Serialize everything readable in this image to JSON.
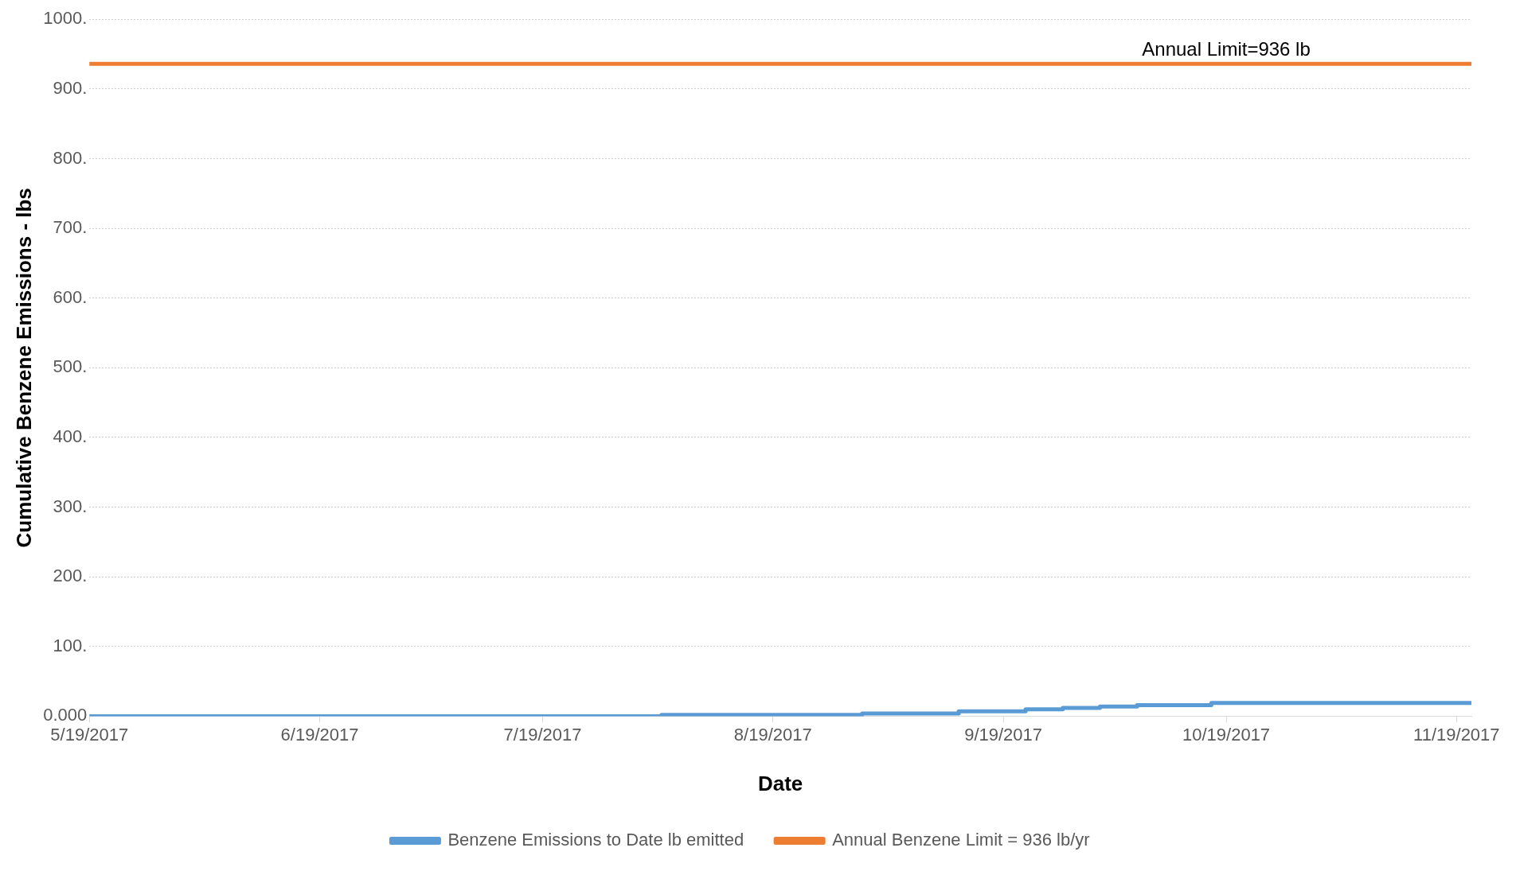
{
  "chart_data": {
    "type": "line",
    "xlabel": "Date",
    "ylabel": "Cumulative Benzene Emissions - lbs",
    "xlim": [
      "2017-05-19",
      "2017-11-21"
    ],
    "xticks": [
      {
        "value": "2017-05-19",
        "label": "5/19/2017"
      },
      {
        "value": "2017-06-19",
        "label": "6/19/2017"
      },
      {
        "value": "2017-07-19",
        "label": "7/19/2017"
      },
      {
        "value": "2017-08-19",
        "label": "8/19/2017"
      },
      {
        "value": "2017-09-19",
        "label": "9/19/2017"
      },
      {
        "value": "2017-10-19",
        "label": "10/19/2017"
      },
      {
        "value": "2017-11-19",
        "label": "11/19/2017"
      }
    ],
    "ylim": [
      0,
      1000
    ],
    "yticks": [
      {
        "value": 0,
        "label": "0.000"
      },
      {
        "value": 100,
        "label": "100."
      },
      {
        "value": 200,
        "label": "200."
      },
      {
        "value": 300,
        "label": "300."
      },
      {
        "value": 400,
        "label": "400."
      },
      {
        "value": 500,
        "label": "500."
      },
      {
        "value": 600,
        "label": "600."
      },
      {
        "value": 700,
        "label": "700."
      },
      {
        "value": 800,
        "label": "800."
      },
      {
        "value": 900,
        "label": "900."
      },
      {
        "value": 1000,
        "label": "1000."
      }
    ],
    "series": [
      {
        "name": "Benzene Emissions to Date lb emitted",
        "color": "#5b9bd5",
        "type": "step",
        "x": [
          "2017-05-19",
          "2017-08-04",
          "2017-08-31",
          "2017-09-13",
          "2017-09-22",
          "2017-09-27",
          "2017-10-02",
          "2017-10-07",
          "2017-10-17",
          "2017-11-21"
        ],
        "values": [
          0,
          2,
          4,
          7,
          10,
          12,
          14,
          16,
          19,
          19
        ]
      },
      {
        "name": "Annual Benzene Limit = 936 lb/yr",
        "color": "#ed7d31",
        "type": "line",
        "x": [
          "2017-05-19",
          "2017-11-21"
        ],
        "values": [
          936,
          936
        ]
      }
    ],
    "annotations": [
      {
        "text": "Annual Limit=936 lb",
        "x": "2017-10-19",
        "y": 936
      }
    ],
    "grid": "y",
    "legend": "bottom",
    "marker": "none",
    "line_style": "solid"
  }
}
